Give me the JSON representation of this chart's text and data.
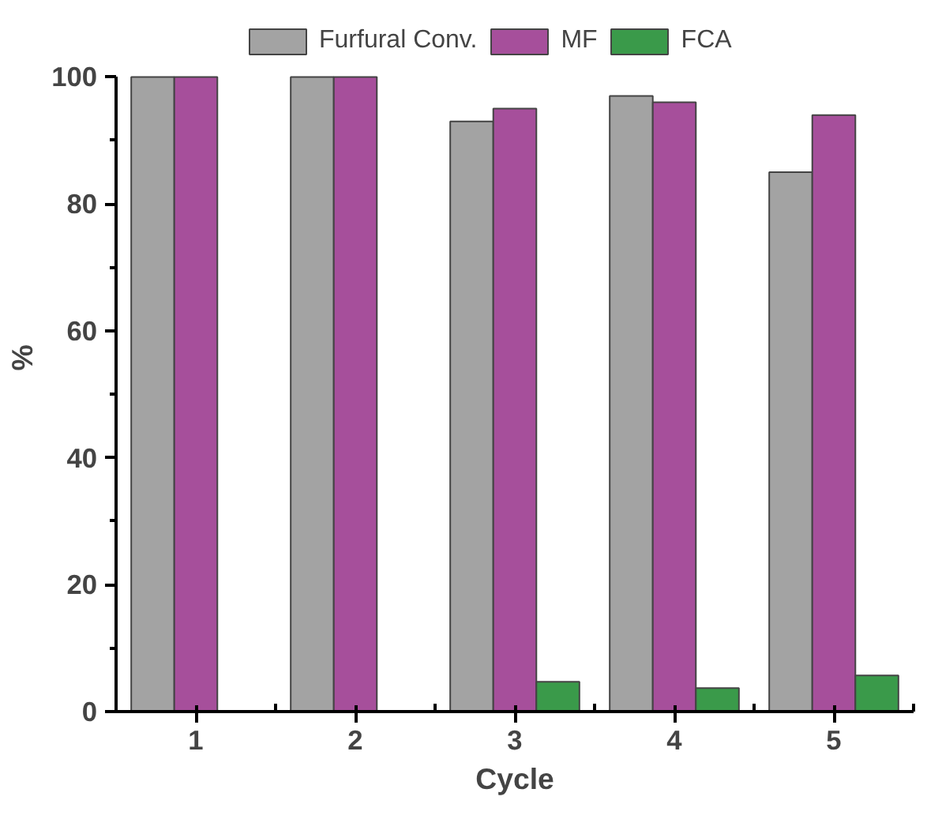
{
  "chart_data": {
    "type": "bar",
    "xlabel": "Cycle",
    "ylabel": "%",
    "categories": [
      "1",
      "2",
      "3",
      "4",
      "5"
    ],
    "series": [
      {
        "name": "Furfural Conv.",
        "color": "#a3a3a3",
        "values": [
          100,
          100,
          93,
          97,
          85
        ]
      },
      {
        "name": "MF",
        "color": "#a64f9b",
        "values": [
          100,
          100,
          95,
          96,
          94
        ]
      },
      {
        "name": "FCA",
        "color": "#3a9a4a",
        "values": [
          null,
          null,
          4.7,
          3.7,
          5.7
        ]
      }
    ],
    "ylim": [
      0,
      100
    ],
    "yticks": [
      0,
      20,
      40,
      60,
      80,
      100
    ],
    "grid": false,
    "legend": "top"
  }
}
